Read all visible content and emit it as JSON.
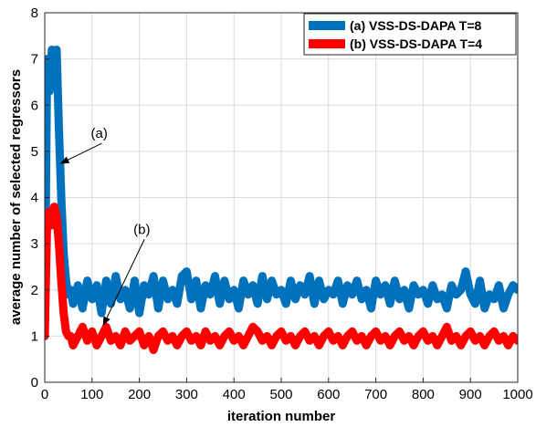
{
  "chart_data": {
    "type": "line",
    "xlabel": "iteration number",
    "ylabel": "average number of selected regressors",
    "xlim": [
      0,
      1000
    ],
    "ylim": [
      0,
      8
    ],
    "xticks": [
      0,
      100,
      200,
      300,
      400,
      500,
      600,
      700,
      800,
      900,
      1000
    ],
    "yticks": [
      0,
      1,
      2,
      3,
      4,
      5,
      6,
      7,
      8
    ],
    "grid": true,
    "legend_position": "top-right",
    "series": [
      {
        "name": "(a) VSS-DS-DAPA T=8",
        "color": "#0072BD",
        "x": [
          0,
          5,
          10,
          15,
          20,
          25,
          30,
          35,
          40,
          45,
          50,
          55,
          60,
          70,
          80,
          90,
          100,
          110,
          120,
          130,
          140,
          150,
          160,
          170,
          180,
          190,
          200,
          210,
          220,
          230,
          240,
          250,
          260,
          270,
          280,
          290,
          300,
          310,
          320,
          330,
          340,
          350,
          360,
          370,
          380,
          390,
          400,
          410,
          420,
          430,
          440,
          450,
          460,
          470,
          480,
          490,
          500,
          510,
          520,
          530,
          540,
          550,
          560,
          570,
          580,
          590,
          600,
          610,
          620,
          630,
          640,
          650,
          660,
          670,
          680,
          690,
          700,
          710,
          720,
          730,
          740,
          750,
          760,
          770,
          780,
          790,
          800,
          810,
          820,
          830,
          840,
          850,
          860,
          870,
          880,
          890,
          900,
          910,
          920,
          930,
          940,
          950,
          960,
          970,
          980,
          990,
          1000
        ],
        "y": [
          1.0,
          7.0,
          6.3,
          7.2,
          6.4,
          7.2,
          5.5,
          4.0,
          2.8,
          2.2,
          1.9,
          2.0,
          1.7,
          2.1,
          1.6,
          2.2,
          1.8,
          2.1,
          1.5,
          2.2,
          1.7,
          2.3,
          1.8,
          2.0,
          1.6,
          2.2,
          1.5,
          2.1,
          1.9,
          2.3,
          1.6,
          2.2,
          1.8,
          2.0,
          1.7,
          2.3,
          2.4,
          1.8,
          2.2,
          1.6,
          2.1,
          1.9,
          2.3,
          1.7,
          2.2,
          1.8,
          2.0,
          1.6,
          2.2,
          1.9,
          2.1,
          1.7,
          2.3,
          1.8,
          2.2,
          1.9,
          2.0,
          1.7,
          2.2,
          1.8,
          2.1,
          1.9,
          2.3,
          1.7,
          2.2,
          1.8,
          2.0,
          1.9,
          2.2,
          1.7,
          2.1,
          1.9,
          2.2,
          1.8,
          2.0,
          1.6,
          2.2,
          1.9,
          2.1,
          1.7,
          2.2,
          1.8,
          2.0,
          1.6,
          2.1,
          1.9,
          2.0,
          1.7,
          2.1,
          1.8,
          1.9,
          1.6,
          2.1,
          1.9,
          2.0,
          2.4,
          1.9,
          1.7,
          2.2,
          1.6,
          1.9,
          1.8,
          2.1,
          1.6,
          1.9,
          2.1,
          2.0
        ]
      },
      {
        "name": "(b) VSS-DS-DAPA T=4",
        "color": "#FF0000",
        "x": [
          0,
          5,
          10,
          15,
          20,
          25,
          30,
          35,
          40,
          45,
          50,
          55,
          60,
          70,
          80,
          90,
          100,
          110,
          120,
          130,
          140,
          150,
          160,
          170,
          180,
          190,
          200,
          210,
          220,
          230,
          240,
          250,
          260,
          270,
          280,
          290,
          300,
          310,
          320,
          330,
          340,
          350,
          360,
          370,
          380,
          390,
          400,
          410,
          420,
          430,
          440,
          450,
          460,
          470,
          480,
          490,
          500,
          510,
          520,
          530,
          540,
          550,
          560,
          570,
          580,
          590,
          600,
          610,
          620,
          630,
          640,
          650,
          660,
          670,
          680,
          690,
          700,
          710,
          720,
          730,
          740,
          750,
          760,
          770,
          780,
          790,
          800,
          810,
          820,
          830,
          840,
          850,
          860,
          870,
          880,
          890,
          900,
          910,
          920,
          930,
          940,
          950,
          960,
          970,
          980,
          990,
          1000
        ],
        "y": [
          1.0,
          3.5,
          3.7,
          3.4,
          3.8,
          3.6,
          3.0,
          2.2,
          1.5,
          1.1,
          1.0,
          1.0,
          0.8,
          1.0,
          1.2,
          0.9,
          1.1,
          0.8,
          1.0,
          1.2,
          0.9,
          1.0,
          0.8,
          1.1,
          0.9,
          1.0,
          1.1,
          0.8,
          1.0,
          0.7,
          1.0,
          1.1,
          0.9,
          1.0,
          0.8,
          1.0,
          1.1,
          0.9,
          1.0,
          0.8,
          1.1,
          0.9,
          1.0,
          0.8,
          1.0,
          1.1,
          0.9,
          1.0,
          0.8,
          1.0,
          1.2,
          1.1,
          0.9,
          1.0,
          0.8,
          1.0,
          1.1,
          0.9,
          1.0,
          0.8,
          1.0,
          1.1,
          0.9,
          1.0,
          0.8,
          1.0,
          1.1,
          0.9,
          1.0,
          0.8,
          1.0,
          1.1,
          0.9,
          1.0,
          0.8,
          1.0,
          1.1,
          0.9,
          1.0,
          0.8,
          1.0,
          1.1,
          0.9,
          1.0,
          0.8,
          1.0,
          1.1,
          0.9,
          1.0,
          0.8,
          1.0,
          1.2,
          0.9,
          1.0,
          0.8,
          1.0,
          1.1,
          0.9,
          1.0,
          0.8,
          1.0,
          1.1,
          0.9,
          1.0,
          0.8,
          1.0,
          0.9
        ]
      }
    ],
    "annotations": [
      {
        "text": "(a)",
        "target_x": 30,
        "target_y": 4.7
      },
      {
        "text": "(b)",
        "target_x": 120,
        "target_y": 1.2
      }
    ]
  }
}
